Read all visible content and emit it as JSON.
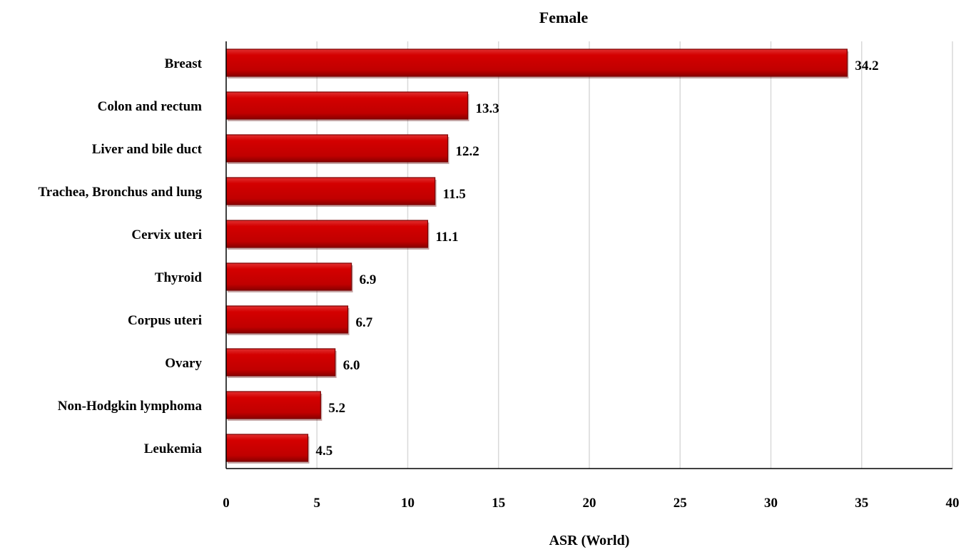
{
  "chart_data": {
    "type": "bar",
    "orientation": "horizontal",
    "title": "Female",
    "xlabel": "ASR (World)",
    "ylabel": "",
    "categories": [
      "Breast",
      "Colon and rectum",
      "Liver and bile duct",
      "Trachea, Bronchus and lung",
      "Cervix uteri",
      "Thyroid",
      "Corpus uteri",
      "Ovary",
      "Non-Hodgkin lymphoma",
      "Leukemia"
    ],
    "values": [
      34.2,
      13.3,
      12.2,
      11.5,
      11.1,
      6.9,
      6.7,
      6.0,
      5.2,
      4.5
    ],
    "value_labels": [
      "34.2",
      "13.3",
      "12.2",
      "11.5",
      "11.1",
      "6.9",
      "6.7",
      "6.0",
      "5.2",
      "4.5"
    ],
    "xlim": [
      0,
      40
    ],
    "xticks": [
      "0",
      "5",
      "10",
      "15",
      "20",
      "25",
      "30",
      "35",
      "40"
    ],
    "grid": "vertical",
    "legend": "none",
    "bar_color": "#c00000",
    "bar_edge_color": "#7a0000"
  }
}
